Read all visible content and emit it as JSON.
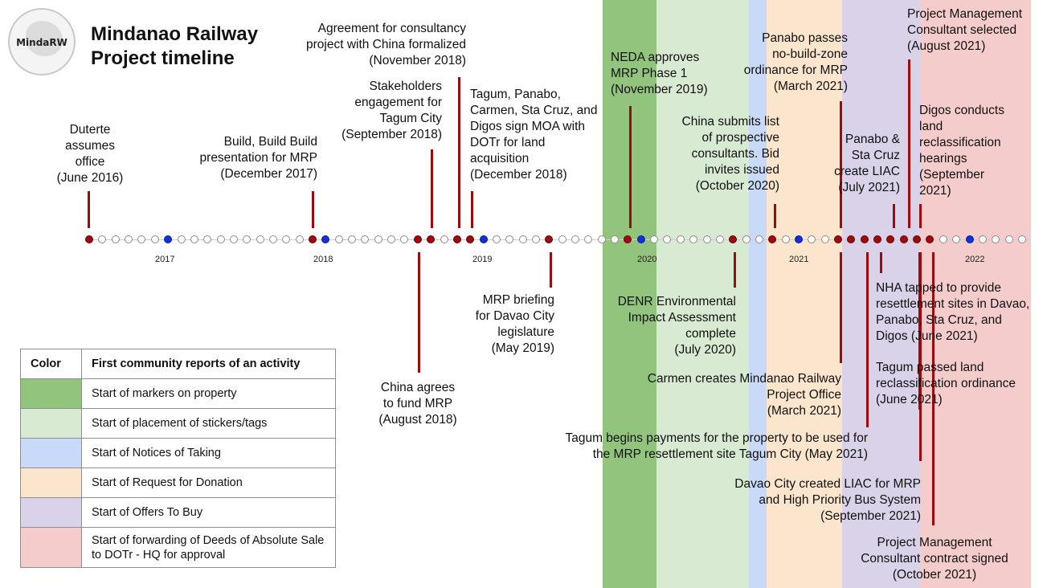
{
  "title": {
    "line1": "Mindanao Railway",
    "line2": "Project timeline"
  },
  "logo": {
    "text": "MindaRW"
  },
  "colors": {
    "green": "#93c47d",
    "light_green": "#d9ead3",
    "light_blue": "#c9daf8",
    "light_orange": "#fce5cd",
    "light_purple": "#d9d2e9",
    "light_red": "#f4cccc",
    "event": "#9e0b0f",
    "notice": "#1030d8"
  },
  "years": [
    "2017",
    "2018",
    "2019",
    "2020",
    "2021",
    "2022"
  ],
  "annotations": {
    "duterte": [
      "Duterte",
      "assumes",
      "office",
      "(June 2016)"
    ],
    "bbb": [
      "Build, Build Build",
      "presentation for MRP",
      "(December 2017)"
    ],
    "consultancy": [
      "Agreement for consultancy",
      "project with China formalized",
      "(November 2018)"
    ],
    "stakeholders": [
      "Stakeholders",
      "engagement for",
      "Tagum City",
      "(September 2018)"
    ],
    "moa": [
      "Tagum, Panabo,",
      "Carmen, Sta Cruz, and",
      "Digos sign MOA with",
      "DOTr for land",
      "acquisition",
      "(December 2018)"
    ],
    "neda": [
      "NEDA approves",
      "MRP Phase 1",
      "(November 2019)"
    ],
    "china_list": [
      "China submits list",
      "of  prospective",
      "consultants. Bid",
      "invites issued",
      "(October 2020)"
    ],
    "panabo_nbz": [
      "Panabo passes",
      "no-build-zone",
      "ordinance for MRP",
      "(March 2021)"
    ],
    "panabo_liac": [
      "Panabo &",
      "Sta Cruz",
      "create LIAC",
      "(July 2021)"
    ],
    "pmc_selected": [
      "Project Management",
      "Consultant selected",
      "(August 2021)"
    ],
    "digos": [
      "Digos conducts",
      "land",
      "reclassification",
      "hearings",
      "(September",
      "2021)"
    ],
    "china_fund": [
      "China agrees",
      "to fund MRP",
      "(August 2018)"
    ],
    "briefing": [
      "MRP briefing",
      "for Davao City",
      "legislature",
      "(May 2019)"
    ],
    "denr": [
      "DENR Environmental",
      "Impact Assessment",
      "complete",
      "(July 2020)"
    ],
    "carmen": [
      "Carmen creates Mindanao Railway",
      "Project Office",
      "(March 2021)"
    ],
    "tagum_payments": [
      "Tagum begins payments for the property to be used for",
      "the MRP resettlement site Tagum City (May 2021)"
    ],
    "nha": [
      "NHA tapped to provide",
      "resettlement sites in Davao,",
      "Panabo, Sta Cruz, and",
      "Digos (June 2021)"
    ],
    "tagum_land": [
      "Tagum passed land",
      "reclassification ordinance",
      "(June 2021)"
    ],
    "davao_liac": [
      "Davao City created LIAC for MRP",
      "and High Priority Bus System",
      "(September 2021)"
    ],
    "pmc_contract": [
      "Project Management",
      "Consultant contract signed",
      "(October 2021)"
    ]
  },
  "legend": {
    "header_color": "Color",
    "header_desc": "First community reports of an activity",
    "rows": [
      {
        "color": "#93c47d",
        "label": "Start of markers on property"
      },
      {
        "color": "#d9ead3",
        "label": "Start of placement of stickers/tags"
      },
      {
        "color": "#c9daf8",
        "label": "Start of Notices of Taking"
      },
      {
        "color": "#fce5cd",
        "label": "Start of Request for Donation"
      },
      {
        "color": "#d9d2e9",
        "label": "Start of Offers To Buy"
      },
      {
        "color": "#f4cccc",
        "label": "Start of forwarding of Deeds of Absolute Sale to DOTr - HQ for approval"
      }
    ]
  }
}
